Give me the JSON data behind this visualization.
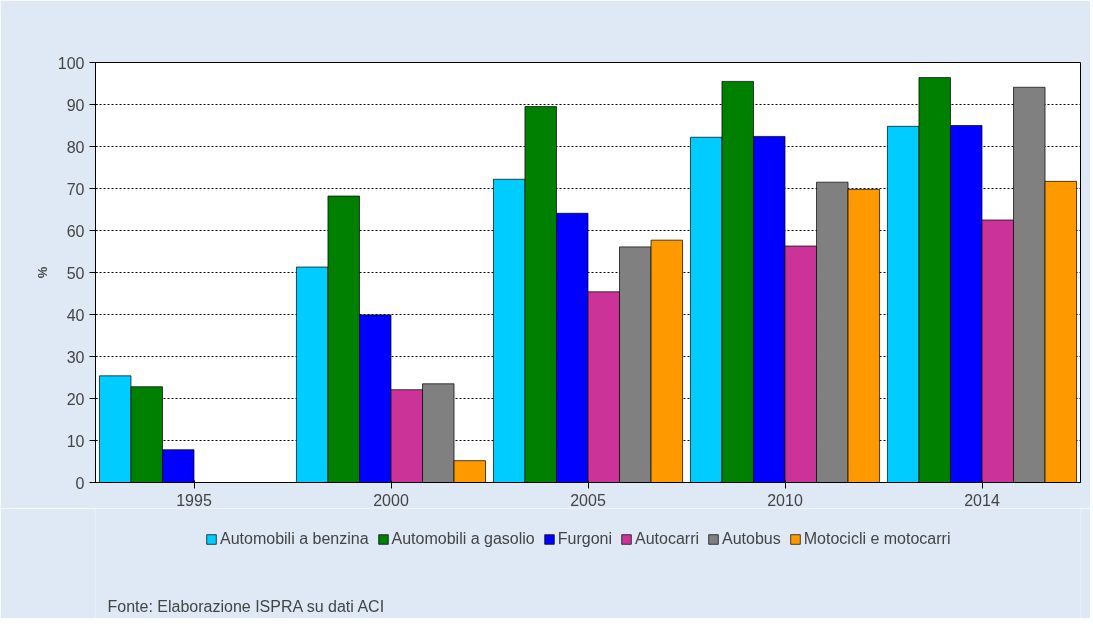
{
  "chart_data": {
    "type": "bar",
    "ylabel": "%",
    "categories": [
      "1995",
      "2000",
      "2005",
      "2010",
      "2014"
    ],
    "series": [
      {
        "name": "Automobili a benzina",
        "color": "#00ccff",
        "values": [
          25.4,
          51.3,
          72.2,
          82.2,
          84.8
        ]
      },
      {
        "name": "Automobili a gasolio",
        "color": "#008000",
        "values": [
          22.8,
          68.2,
          89.5,
          95.5,
          96.4
        ]
      },
      {
        "name": "Furgoni",
        "color": "#0000ff",
        "values": [
          7.8,
          39.9,
          64.1,
          82.4,
          85.0
        ]
      },
      {
        "name": "Autocarri",
        "color": "#cc3399",
        "values": [
          null,
          22.1,
          45.4,
          56.3,
          62.5
        ]
      },
      {
        "name": "Autobus",
        "color": "#808080",
        "values": [
          null,
          23.5,
          56.1,
          71.5,
          94.1
        ]
      },
      {
        "name": "Motocicli e motocarri",
        "color": "#ff9900",
        "values": [
          null,
          5.2,
          57.7,
          69.8,
          71.7
        ]
      }
    ],
    "ylim": [
      0,
      100
    ],
    "yticks": [
      0,
      10,
      20,
      30,
      40,
      50,
      60,
      70,
      80,
      90,
      100
    ],
    "grid": "y",
    "legend": "bottom",
    "annotations": [
      "Fonte: Elaborazione ISPRA su dati ACI"
    ]
  }
}
